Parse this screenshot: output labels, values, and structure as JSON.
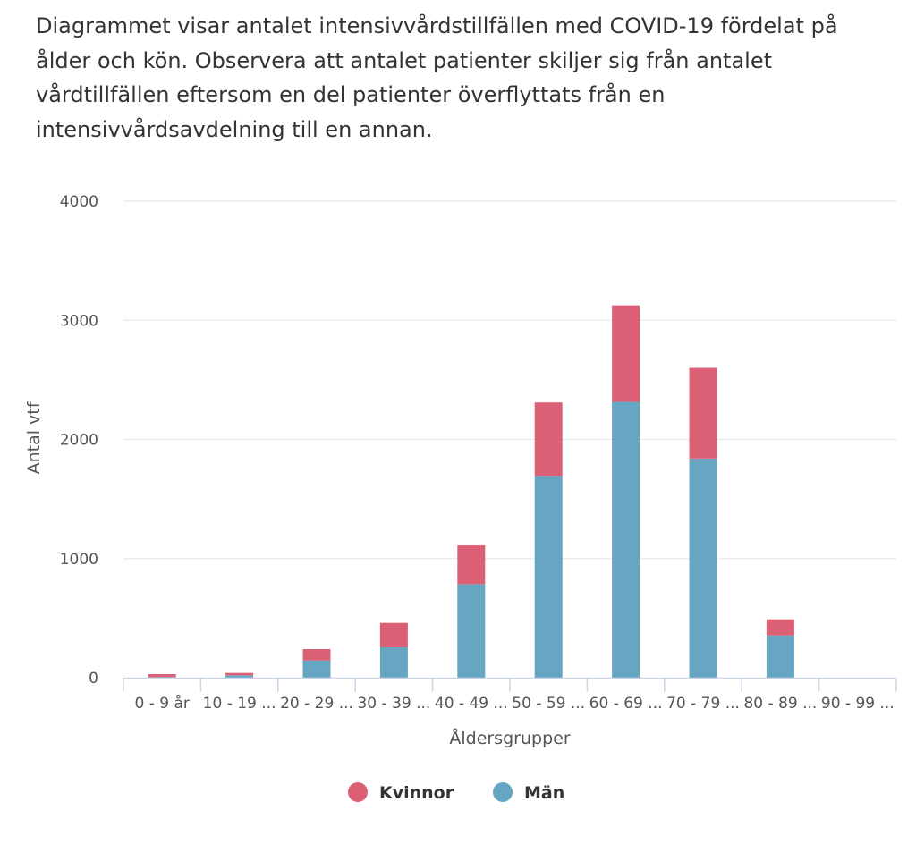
{
  "description": "Diagrammet visar antalet intensivvårdstillfällen med COVID-19 fördelat på ålder och kön. Observera att antalet patienter skiljer sig från antalet vårdtillfällen eftersom en del patienter överflyttats från en intensivvårdsavdelning till en annan.",
  "colors": {
    "Kvinnor": "#dc6075",
    "Män": "#67a6c3",
    "grid": "#e6e6e6",
    "axis": "#ccd6eb"
  },
  "chart_data": {
    "type": "bar",
    "stacked": true,
    "categories": [
      "0 - 9 år",
      "10 - 19 ...",
      "20 - 29 ...",
      "30 - 39 ...",
      "40 - 49 ...",
      "50 - 59 ...",
      "60 - 69 ...",
      "70 - 79 ...",
      "80 - 89 ...",
      "90 - 99 ..."
    ],
    "series": [
      {
        "name": "Män",
        "values": [
          5,
          20,
          145,
          255,
          785,
          1695,
          2315,
          1840,
          355,
          0
        ]
      },
      {
        "name": "Kvinnor",
        "values": [
          25,
          20,
          95,
          205,
          325,
          615,
          810,
          760,
          135,
          0
        ]
      }
    ],
    "xlabel": "Åldersgrupper",
    "ylabel": "Antal vtf",
    "ylim": [
      0,
      4000
    ],
    "yticks": [
      0,
      1000,
      2000,
      3000,
      4000
    ],
    "grid": true,
    "legend": [
      "Kvinnor",
      "Män"
    ],
    "legend_position": "bottom-center"
  }
}
